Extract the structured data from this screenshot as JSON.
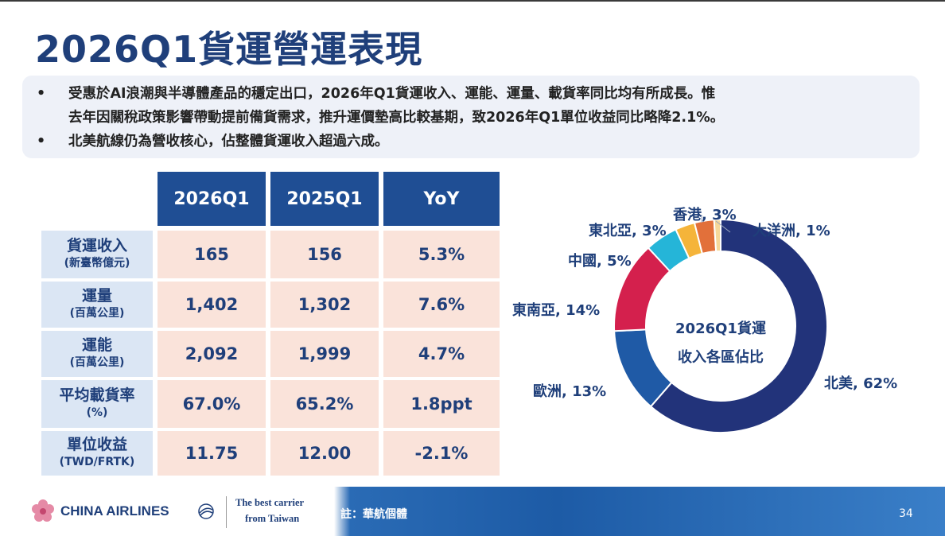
{
  "title": "2026Q1貨運營運表現",
  "bullets": {
    "b1_line1": "受惠於AI浪潮與半導體產品的穩定出口，2026年Q1貨運收入、運能、運量、載貨率同比均有所成長。惟",
    "b1_line2": "去年因關稅政策影響帶動提前備貨需求，推升運價墊高比較基期，致2026年Q1單位收益同比略降2.1%。",
    "b2": "北美航線仍為營收核心，佔整體貨運收入超過六成。",
    "dot": "•"
  },
  "table": {
    "headers": [
      "2026Q1",
      "2025Q1",
      "YoY"
    ],
    "rows": [
      {
        "label": "貨運收入",
        "unit": "(新臺幣億元)",
        "values": [
          "165",
          "156",
          "5.3%"
        ]
      },
      {
        "label": "運量",
        "unit": "(百萬公里)",
        "values": [
          "1,402",
          "1,302",
          "7.6%"
        ]
      },
      {
        "label": "運能",
        "unit": "(百萬公里)",
        "values": [
          "2,092",
          "1,999",
          "4.7%"
        ]
      },
      {
        "label": "平均載貨率",
        "unit": "(%)",
        "values": [
          "67.0%",
          "65.2%",
          "1.8ppt"
        ]
      },
      {
        "label": "單位收益",
        "unit": "(TWD/FRTK)",
        "values": [
          "11.75",
          "12.00",
          "-2.1%"
        ]
      }
    ]
  },
  "chart_data": {
    "type": "pie",
    "center_line1": "2026Q1貨運",
    "center_line2": "收入各區佔比",
    "slices": [
      {
        "name": "北美",
        "value": 62,
        "label": "北美, 62%",
        "color": "#22337a"
      },
      {
        "name": "歐洲",
        "value": 13,
        "label": "歐洲, 13%",
        "color": "#1f5aa6"
      },
      {
        "name": "東南亞",
        "value": 14,
        "label": "東南亞, 14%",
        "color": "#d4204d"
      },
      {
        "name": "中國",
        "value": 5,
        "label": "中國, 5%",
        "color": "#25b5d8"
      },
      {
        "name": "東北亞",
        "value": 3,
        "label": "東北亞, 3%",
        "color": "#f5b43a"
      },
      {
        "name": "香港",
        "value": 3,
        "label": "香港, 3%",
        "color": "#e2703a"
      },
      {
        "name": "大洋洲",
        "value": 1,
        "label": "大洋洲, 1%",
        "color": "#f6d89a"
      }
    ]
  },
  "footer": {
    "brand": "CHINA AIRLINES",
    "slogan_line1": "The best carrier",
    "slogan_line2": "from Taiwan",
    "note": "註：華航個體",
    "page_number": "34"
  },
  "colors": {
    "title": "#1f3f7a",
    "header_bg": "#1f4e94",
    "label_bg": "#dbe6f4",
    "value_bg": "#fae3da"
  }
}
